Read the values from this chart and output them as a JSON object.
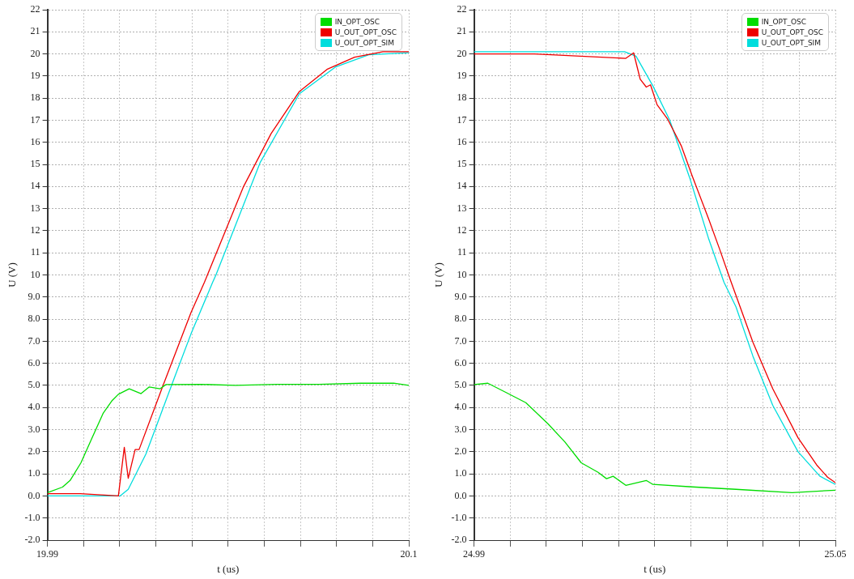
{
  "chart_data": [
    {
      "type": "line",
      "xlabel": "t (us)",
      "ylabel": "U (V)",
      "xlim": [
        19.99,
        20.1
      ],
      "ylim": [
        -2,
        22
      ],
      "xticks": [
        19.99,
        {
          "value": 20.001,
          "label": null
        },
        {
          "value": 20.012,
          "label": null
        },
        {
          "value": 20.023,
          "label": null
        },
        {
          "value": 20.034,
          "label": null
        },
        {
          "value": 20.045,
          "label": null
        },
        {
          "value": 20.056,
          "label": null
        },
        {
          "value": 20.067,
          "label": null
        },
        {
          "value": 20.078,
          "label": null
        },
        {
          "value": 20.089,
          "label": null
        },
        20.1
      ],
      "yticks": [
        {
          "value": -2,
          "label": "-2.0"
        },
        {
          "value": -1,
          "label": "-1.0"
        },
        {
          "value": 0,
          "label": "0.0"
        },
        {
          "value": 1,
          "label": "1.0"
        },
        {
          "value": 2,
          "label": "2.0"
        },
        {
          "value": 3,
          "label": "3.0"
        },
        {
          "value": 4,
          "label": "4.0"
        },
        {
          "value": 5,
          "label": "5.0"
        },
        {
          "value": 6,
          "label": "6.0"
        },
        {
          "value": 7,
          "label": "7.0"
        },
        {
          "value": 8,
          "label": "8.0"
        },
        {
          "value": 9,
          "label": "9.0"
        },
        10,
        11,
        12,
        13,
        14,
        15,
        16,
        17,
        18,
        19,
        20,
        21,
        22
      ],
      "grid": true,
      "legend": "top right",
      "marker": "none",
      "line_style": "solid",
      "series": [
        {
          "name": "IN_OPT_OSC",
          "color": "#00dd00",
          "x": [
            19.99,
            19.9946,
            19.9969,
            20.0002,
            20.0035,
            20.007,
            20.0096,
            20.0116,
            20.0149,
            20.0185,
            20.021,
            20.0243,
            20.0261,
            20.037,
            20.0472,
            20.0599,
            20.0726,
            20.0853,
            20.0954,
            20.1
          ],
          "values": [
            0.15,
            0.4,
            0.7,
            1.5,
            2.6,
            3.75,
            4.3,
            4.6,
            4.85,
            4.63,
            4.93,
            4.85,
            5.04,
            5.05,
            5.0,
            5.05,
            5.05,
            5.1,
            5.1,
            5.0
          ]
        },
        {
          "name": "U_OUT_OPT_OSC",
          "color": "#ee0000",
          "x": [
            19.99,
            20.0,
            20.0116,
            20.0134,
            20.0146,
            20.0167,
            20.0179,
            20.0251,
            20.0337,
            20.0378,
            20.0497,
            20.0581,
            20.0667,
            20.0751,
            20.0835,
            20.0921,
            20.1
          ],
          "values": [
            0.1,
            0.1,
            0,
            2.2,
            0.8,
            2.1,
            2.1,
            4.96,
            8.3,
            9.67,
            14.0,
            16.4,
            18.3,
            19.3,
            19.85,
            20.1,
            20.1
          ]
        },
        {
          "name": "U_OUT_OPT_SIM",
          "color": "#00dddd",
          "x": [
            19.99,
            20.0121,
            20.0146,
            20.02,
            20.0286,
            20.0337,
            20.0403,
            20.0413,
            20.0548,
            20.0667,
            20.0776,
            20.0878,
            20.1
          ],
          "values": [
            0,
            0,
            0.3,
            1.9,
            5.33,
            7.33,
            9.67,
            10.0,
            15.1,
            18.2,
            19.4,
            19.96,
            20.05
          ]
        }
      ]
    },
    {
      "type": "line",
      "xlabel": "t (us)",
      "ylabel": "U (V)",
      "xlim": [
        24.99,
        25.05
      ],
      "ylim": [
        -2,
        22
      ],
      "xticks": [
        24.99,
        {
          "value": 24.996,
          "label": null
        },
        {
          "value": 25.002,
          "label": null
        },
        {
          "value": 25.008,
          "label": null
        },
        {
          "value": 25.014,
          "label": null
        },
        {
          "value": 25.02,
          "label": null
        },
        {
          "value": 25.026,
          "label": null
        },
        {
          "value": 25.032,
          "label": null
        },
        {
          "value": 25.038,
          "label": null
        },
        {
          "value": 25.044,
          "label": null
        },
        25.05
      ],
      "yticks": [
        {
          "value": -2,
          "label": "-2.0"
        },
        {
          "value": -1,
          "label": "-1.0"
        },
        {
          "value": 0,
          "label": "0.0"
        },
        {
          "value": 1,
          "label": "1.0"
        },
        {
          "value": 2,
          "label": "2.0"
        },
        {
          "value": 3,
          "label": "3.0"
        },
        {
          "value": 4,
          "label": "4.0"
        },
        {
          "value": 5,
          "label": "5.0"
        },
        {
          "value": 6,
          "label": "6.0"
        },
        {
          "value": 7,
          "label": "7.0"
        },
        {
          "value": 8,
          "label": "8.0"
        },
        {
          "value": 9,
          "label": "9.0"
        },
        10,
        11,
        12,
        13,
        14,
        15,
        16,
        17,
        18,
        19,
        20,
        21,
        22
      ],
      "grid": true,
      "legend": "top right",
      "marker": "none",
      "line_style": "solid",
      "series": [
        {
          "name": "IN_OPT_OSC",
          "color": "#00dd00",
          "x": [
            24.99,
            24.9923,
            24.9954,
            24.9986,
            25.0023,
            25.0051,
            25.0078,
            25.0106,
            25.012,
            25.0131,
            25.0152,
            25.0186,
            25.0197,
            25.0262,
            25.0335,
            25.0428,
            25.05
          ],
          "values": [
            5.04,
            5.1,
            4.67,
            4.22,
            3.26,
            2.44,
            1.5,
            1.07,
            0.78,
            0.89,
            0.48,
            0.7,
            0.52,
            0.41,
            0.3,
            0.15,
            0.26
          ]
        },
        {
          "name": "U_OUT_OPT_OSC",
          "color": "#ee0000",
          "x": [
            24.99,
            25.0,
            25.0152,
            25.0165,
            25.0176,
            25.0186,
            25.0193,
            25.0204,
            25.0221,
            25.0244,
            25.0262,
            25.029,
            25.0308,
            25.0327,
            25.0363,
            25.0396,
            25.0438,
            25.0469,
            25.0487,
            25.05
          ],
          "values": [
            20.0,
            20.0,
            19.8,
            20.05,
            18.85,
            18.5,
            18.6,
            17.7,
            17.07,
            15.85,
            14.5,
            12.5,
            11.15,
            9.67,
            6.96,
            4.85,
            2.63,
            1.4,
            0.85,
            0.6
          ]
        },
        {
          "name": "U_OUT_OPT_SIM",
          "color": "#00dddd",
          "x": [
            24.99,
            25.015,
            25.0169,
            25.0197,
            25.0225,
            25.0258,
            25.029,
            25.0315,
            25.0335,
            25.0363,
            25.0396,
            25.0438,
            25.0474,
            25.05
          ],
          "values": [
            20.1,
            20.1,
            19.9,
            18.55,
            17.0,
            14.4,
            11.6,
            9.67,
            8.55,
            6.33,
            4.1,
            2.0,
            0.9,
            0.52
          ]
        }
      ]
    }
  ]
}
